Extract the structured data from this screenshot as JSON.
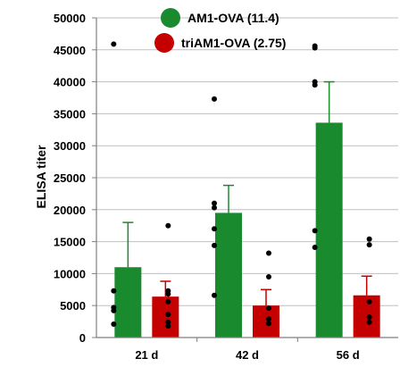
{
  "chart_data": {
    "type": "bar",
    "title": "",
    "xlabel": "",
    "ylabel": "ELISA titer",
    "ylim": [
      0,
      50000
    ],
    "yticks": [
      0,
      5000,
      10000,
      15000,
      20000,
      25000,
      30000,
      35000,
      40000,
      45000,
      50000
    ],
    "ytick_labels": [
      "0",
      "5000",
      "10000",
      "15000",
      "20000",
      "25000",
      "30000",
      "35000",
      "40000",
      "45000",
      "50000"
    ],
    "grid": true,
    "legend_position": "top",
    "categories": [
      "21 d",
      "42 d",
      "56 d"
    ],
    "series": [
      {
        "name": "AM1-OVA (11.4)",
        "color": "#1a8a2e",
        "values": [
          11000,
          19500,
          33600
        ],
        "error_upper": [
          18000,
          23800,
          40000
        ],
        "points": [
          [
            45900,
            7300,
            4700,
            4200,
            2100
          ],
          [
            37300,
            21000,
            20300,
            17000,
            14400,
            6600
          ],
          [
            45600,
            45300,
            40000,
            39500,
            16700,
            14100
          ]
        ]
      },
      {
        "name": "triAM1-OVA (2.75)",
        "color": "#c40000",
        "values": [
          6400,
          5000,
          6600
        ],
        "error_upper": [
          8800,
          7500,
          9600
        ],
        "points": [
          [
            17500,
            7300,
            6800,
            5600,
            3600,
            2400,
            1800
          ],
          [
            13200,
            9500,
            4600,
            2900,
            2200
          ],
          [
            15400,
            14500,
            5600,
            3200,
            2400
          ]
        ]
      }
    ]
  }
}
